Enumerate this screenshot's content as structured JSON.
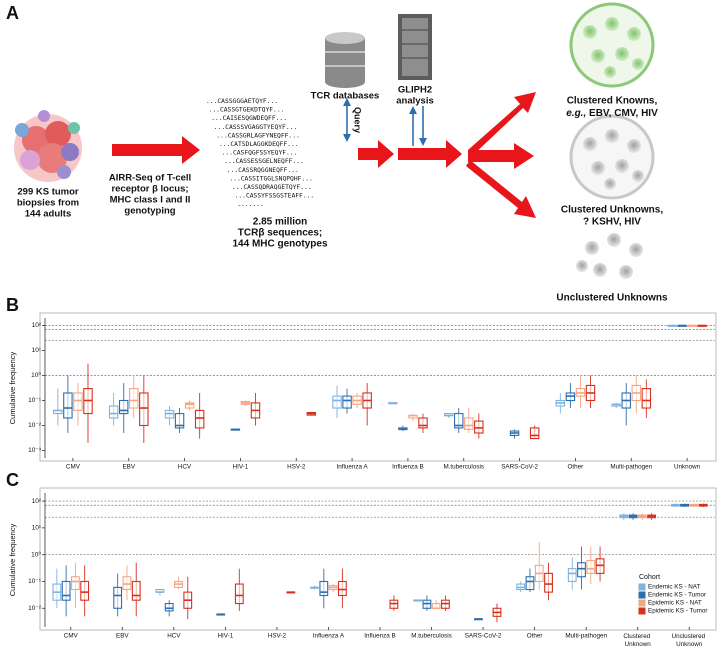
{
  "figure_a": {
    "label": "A",
    "source": [
      "299 KS tumor",
      "biopsies from",
      "144 adults"
    ],
    "assay": [
      "AIRR-Seq of T-cell",
      "receptor β locus;",
      "MHC class I and II",
      "genotyping"
    ],
    "sequences": [
      "...CASSGGGAETQYF...",
      "...CASSGTGEKDTQYF...",
      "...CAISESQGWDEQFF...",
      "...CASSSVGAGGTYEQYF...",
      "...CASSGRLAGFYNEQFF...",
      "...CATSDLAGGKDEQFF...",
      "...CASFQGFSSYEQYF...",
      "...CASSESSGELNEQFF...",
      "...CASSRQGGNEQFF...",
      "...CASSITGGLSNQPQHF...",
      "...CASSQDRAQGETQYF...",
      "...CASSYFSSGSTEAFF...",
      "......."
    ],
    "summary": [
      "2.85 million",
      "TCRβ sequences;",
      "144 MHC genotypes"
    ],
    "database": "TCR databases",
    "query": "Query",
    "analysis": [
      "GLIPH2",
      "analysis"
    ],
    "clustered_knowns": [
      "Clustered Knowns,",
      "e.g.,",
      " EBV, CMV, HIV"
    ],
    "clustered_unknowns": [
      "Clustered Unknowns,",
      "? KSHV, HIV"
    ],
    "unclustered_unknowns": "Unclustered Unknowns"
  },
  "chart_data": [
    {
      "type": "box",
      "panel_label": "B",
      "ylabel": "Cumulative frequency",
      "log_scale": true,
      "ylim": [
        0.0005,
        200
      ],
      "yticks": [
        {
          "value": 100,
          "label": "10²"
        },
        {
          "value": 10,
          "label": "10¹"
        },
        {
          "value": 1,
          "label": "10⁰"
        },
        {
          "value": 0.1,
          "label": "10⁻¹"
        },
        {
          "value": 0.01,
          "label": "10⁻²"
        },
        {
          "value": 0.001,
          "label": "10⁻³"
        }
      ],
      "reference_lines": [
        100,
        70,
        25,
        1
      ],
      "categories": [
        "CMV",
        "EBV",
        "HCV",
        "HIV-1",
        "HSV-2",
        "Influenza A",
        "Influenza B",
        "M.tuberculosis",
        "SARS-CoV-2",
        "Other",
        "Multi-pathogen",
        "Unknown"
      ],
      "series": [
        {
          "color": "#7fb2de",
          "values": [
            [
              0.01,
              0.03,
              0.04,
              0.04,
              0.3
            ],
            [
              0.01,
              0.02,
              0.03,
              0.06,
              0.2
            ],
            [
              0.01,
              0.02,
              0.03,
              0.04,
              0.06
            ],
            null,
            null,
            [
              0.02,
              0.05,
              0.1,
              0.15,
              0.4
            ],
            [
              0.08,
              0.08,
              0.08,
              0.08,
              0.08
            ],
            [
              0.02,
              0.025,
              0.025,
              0.03,
              0.03
            ],
            null,
            [
              0.03,
              0.06,
              0.08,
              0.1,
              0.2
            ],
            [
              0.05,
              0.06,
              0.07,
              0.07,
              0.08
            ],
            [
              99,
              99,
              100,
              100,
              100
            ]
          ]
        },
        {
          "color": "#2c6fb0",
          "values": [
            [
              0.005,
              0.02,
              0.05,
              0.2,
              1
            ],
            [
              0.005,
              0.03,
              0.04,
              0.1,
              0.5
            ],
            [
              0.005,
              0.008,
              0.01,
              0.03,
              0.05
            ],
            [
              0.007,
              0.007,
              0.007,
              0.007,
              0.007
            ],
            null,
            [
              0.03,
              0.05,
              0.1,
              0.15,
              0.3
            ],
            [
              0.006,
              0.007,
              0.007,
              0.008,
              0.01
            ],
            [
              0.005,
              0.008,
              0.01,
              0.03,
              0.05
            ],
            [
              0.003,
              0.004,
              0.005,
              0.006,
              0.007
            ],
            [
              0.05,
              0.1,
              0.15,
              0.2,
              0.5
            ],
            [
              0.01,
              0.05,
              0.1,
              0.2,
              0.5
            ],
            [
              99,
              99,
              100,
              100,
              100
            ]
          ]
        },
        {
          "color": "#f4a582",
          "values": [
            [
              0.01,
              0.04,
              0.1,
              0.2,
              0.5
            ],
            [
              0.02,
              0.05,
              0.1,
              0.3,
              1
            ],
            [
              0.04,
              0.05,
              0.07,
              0.08,
              0.1
            ],
            [
              0.06,
              0.07,
              0.08,
              0.09,
              0.1
            ],
            null,
            [
              0.05,
              0.07,
              0.1,
              0.15,
              0.2
            ],
            [
              0.015,
              0.02,
              0.025,
              0.025,
              0.03
            ],
            [
              0.005,
              0.007,
              0.01,
              0.02,
              0.05
            ],
            null,
            [
              0.05,
              0.15,
              0.2,
              0.3,
              1
            ],
            [
              0.03,
              0.1,
              0.2,
              0.4,
              1
            ],
            [
              99,
              99,
              100,
              100,
              100
            ]
          ]
        },
        {
          "color": "#d7301f",
          "values": [
            [
              0.002,
              0.03,
              0.1,
              0.3,
              3
            ],
            [
              0.002,
              0.01,
              0.05,
              0.2,
              1
            ],
            [
              0.003,
              0.008,
              0.02,
              0.04,
              0.2
            ],
            [
              0.01,
              0.02,
              0.04,
              0.08,
              0.2
            ],
            [
              0.025,
              0.026,
              0.03,
              0.033,
              0.035
            ],
            [
              0.01,
              0.05,
              0.1,
              0.2,
              0.5
            ],
            [
              0.005,
              0.008,
              0.01,
              0.02,
              0.03
            ],
            [
              0.003,
              0.005,
              0.008,
              0.015,
              0.03
            ],
            [
              0.003,
              0.003,
              0.004,
              0.008,
              0.01
            ],
            [
              0.05,
              0.1,
              0.2,
              0.4,
              1
            ],
            [
              0.02,
              0.05,
              0.1,
              0.3,
              0.7
            ],
            [
              99,
              99,
              100,
              100,
              100
            ]
          ]
        }
      ]
    },
    {
      "type": "box",
      "panel_label": "C",
      "ylabel": "Cumulative frequency",
      "log_scale": true,
      "ylim": [
        0.002,
        200
      ],
      "yticks": [
        {
          "value": 100,
          "label": "10²"
        },
        {
          "value": 10,
          "label": "10¹"
        },
        {
          "value": 1,
          "label": "10⁰"
        },
        {
          "value": 0.1,
          "label": "10⁻¹"
        },
        {
          "value": 0.01,
          "label": "10⁻²"
        }
      ],
      "reference_lines": [
        100,
        70,
        25,
        1
      ],
      "categories": [
        "CMV",
        "EBV",
        "HCV",
        "HIV-1",
        "HSV-2",
        "Influenza A",
        "Influenza B",
        "M.tuberculosis",
        "SARS-CoV-2",
        "Other",
        "Multi-pathogen",
        "Clustered Unknown",
        "Unclustered Unknown"
      ],
      "legend_title": "Cohort",
      "legend_position": "right",
      "series": [
        {
          "name": "Endemic KS - NAT",
          "color": "#7fb2de",
          "values": [
            [
              0.01,
              0.02,
              0.04,
              0.08,
              0.3
            ],
            null,
            [
              0.03,
              0.04,
              0.04,
              0.05,
              0.05
            ],
            null,
            null,
            [
              0.05,
              0.06,
              0.06,
              0.06,
              0.07
            ],
            null,
            [
              0.02,
              0.02,
              0.02,
              0.02,
              0.02
            ],
            null,
            [
              0.04,
              0.05,
              0.06,
              0.08,
              0.1
            ],
            [
              0.05,
              0.1,
              0.2,
              0.3,
              0.8
            ],
            [
              20,
              24,
              27,
              30,
              35
            ],
            [
              60,
              65,
              70,
              75,
              80
            ]
          ]
        },
        {
          "name": "Endemic KS - Tumor",
          "color": "#2c6fb0",
          "values": [
            [
              0.005,
              0.02,
              0.03,
              0.1,
              0.4
            ],
            [
              0.005,
              0.01,
              0.03,
              0.06,
              0.2
            ],
            [
              0.005,
              0.008,
              0.01,
              0.015,
              0.02
            ],
            [
              0.006,
              0.006,
              0.006,
              0.006,
              0.006
            ],
            null,
            [
              0.01,
              0.03,
              0.04,
              0.1,
              0.3
            ],
            null,
            [
              0.008,
              0.01,
              0.015,
              0.02,
              0.03
            ],
            [
              0.004,
              0.004,
              0.004,
              0.004,
              0.004
            ],
            [
              0.04,
              0.05,
              0.1,
              0.15,
              0.3
            ],
            [
              0.05,
              0.15,
              0.3,
              0.5,
              2
            ],
            [
              20,
              24,
              27,
              30,
              35
            ],
            [
              60,
              65,
              70,
              75,
              80
            ]
          ]
        },
        {
          "name": "Epidemic KS - NAT",
          "color": "#f4a582",
          "values": [
            [
              0.01,
              0.05,
              0.1,
              0.15,
              0.5
            ],
            [
              0.02,
              0.05,
              0.08,
              0.15,
              0.4
            ],
            [
              0.05,
              0.06,
              0.08,
              0.1,
              0.15
            ],
            null,
            null,
            [
              0.04,
              0.05,
              0.06,
              0.07,
              0.08
            ],
            null,
            [
              0.01,
              0.01,
              0.01,
              0.015,
              0.02
            ],
            null,
            [
              0.05,
              0.1,
              0.2,
              0.4,
              3
            ],
            [
              0.08,
              0.2,
              0.3,
              0.6,
              2
            ],
            [
              20,
              24,
              27,
              30,
              35
            ],
            [
              60,
              65,
              70,
              75,
              80
            ]
          ]
        },
        {
          "name": "Epidemic KS - Tumor",
          "color": "#d7301f",
          "values": [
            [
              0.005,
              0.02,
              0.04,
              0.1,
              0.4
            ],
            [
              0.005,
              0.02,
              0.03,
              0.1,
              0.5
            ],
            [
              0.004,
              0.01,
              0.02,
              0.04,
              0.15
            ],
            [
              0.008,
              0.015,
              0.03,
              0.08,
              0.3
            ],
            [
              0.04,
              0.04,
              0.04,
              0.04,
              0.04
            ],
            [
              0.01,
              0.03,
              0.05,
              0.1,
              0.3
            ],
            [
              0.008,
              0.01,
              0.015,
              0.02,
              0.03
            ],
            [
              0.008,
              0.01,
              0.015,
              0.02,
              0.03
            ],
            [
              0.003,
              0.005,
              0.007,
              0.01,
              0.015
            ],
            [
              0.02,
              0.04,
              0.08,
              0.2,
              0.5
            ],
            [
              0.1,
              0.2,
              0.4,
              0.7,
              2
            ],
            [
              20,
              24,
              27,
              30,
              35
            ],
            [
              60,
              65,
              70,
              75,
              80
            ]
          ]
        }
      ]
    }
  ]
}
